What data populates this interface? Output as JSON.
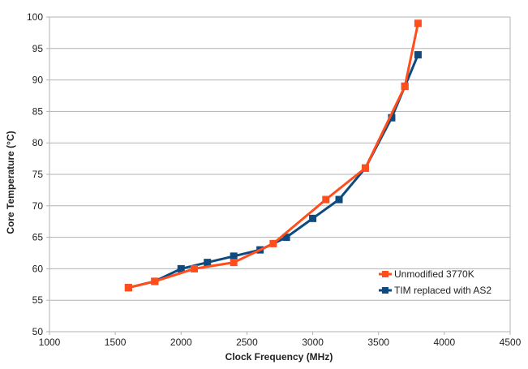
{
  "chart_data": {
    "type": "line",
    "xlabel": "Clock Frequency (MHz)",
    "ylabel": "Core Temperature (°C)",
    "xlim": [
      1000,
      4500
    ],
    "ylim": [
      50,
      100
    ],
    "x_ticks": [
      1000,
      1500,
      2000,
      2500,
      3000,
      3500,
      4000,
      4500
    ],
    "y_ticks": [
      50,
      55,
      60,
      65,
      70,
      75,
      80,
      85,
      90,
      95,
      100
    ],
    "grid": "horizontal",
    "legend_position": "bottom-right",
    "series": [
      {
        "name": "Unmodified 3770K",
        "color": "#ff4d1c",
        "x": [
          1600,
          1800,
          2100,
          2400,
          2700,
          3100,
          3400,
          3700,
          3800
        ],
        "y": [
          57,
          58,
          60,
          61,
          64,
          71,
          76,
          89,
          99
        ]
      },
      {
        "name": "TIM replaced with AS2",
        "color": "#0d4a80",
        "x": [
          1600,
          1800,
          2000,
          2200,
          2400,
          2600,
          2800,
          3000,
          3200,
          3400,
          3600,
          3700,
          3800
        ],
        "y": [
          57,
          58,
          60,
          61,
          62,
          63,
          65,
          68,
          71,
          76,
          84,
          89,
          94
        ]
      }
    ]
  }
}
